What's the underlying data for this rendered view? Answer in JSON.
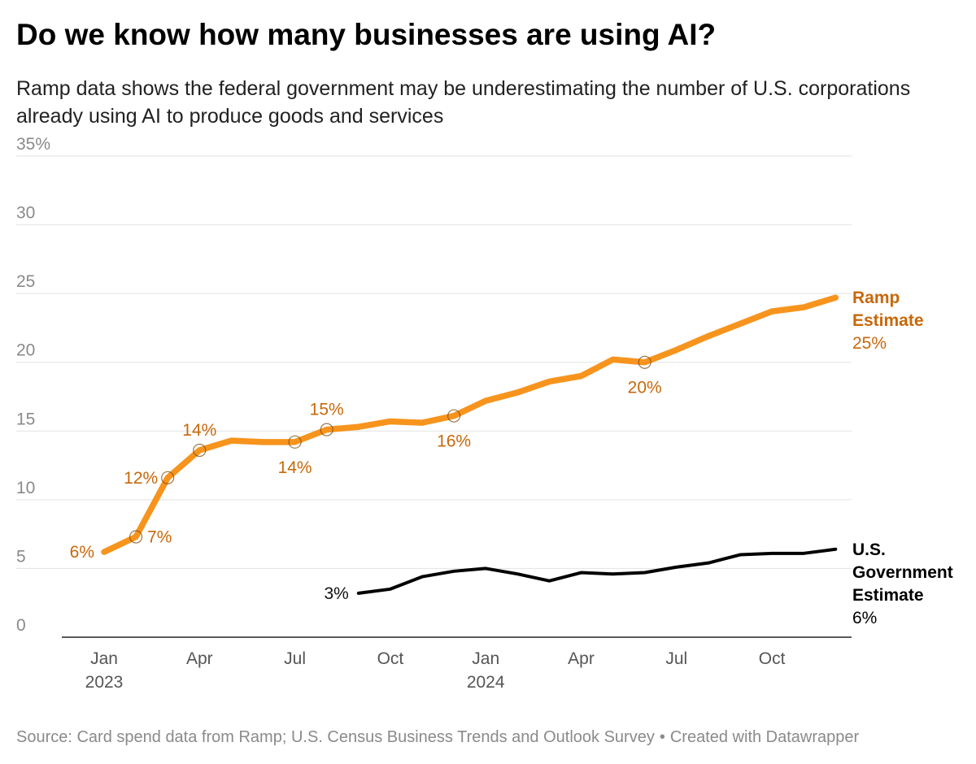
{
  "title": "Do we know how many businesses are using AI?",
  "subtitle": "Ramp data shows the federal government may be underestimating the number of U.S. corporations already using AI to produce goods and services",
  "colors": {
    "ramp": "#f7941d",
    "ramp_label": "#c8680a",
    "government": "#000000",
    "grid": "#e2e2e2",
    "axis_text": "#8a8a8a"
  },
  "source": {
    "text": "Source: Card spend data from Ramp; U.S. Census Business Trends and Outlook Survey",
    "separator": "•",
    "credit": "Created with Datawrapper"
  },
  "chart_data": {
    "type": "line",
    "title": "Do we know how many businesses are using AI?",
    "ylabel": "",
    "xlabel": "",
    "ylim": [
      0,
      35
    ],
    "y_ticks": [
      {
        "value": 0,
        "label": "0"
      },
      {
        "value": 5,
        "label": "5"
      },
      {
        "value": 10,
        "label": "10"
      },
      {
        "value": 15,
        "label": "15"
      },
      {
        "value": 20,
        "label": "20"
      },
      {
        "value": 25,
        "label": "25"
      },
      {
        "value": 30,
        "label": "30"
      },
      {
        "value": 35,
        "label": "35%"
      }
    ],
    "x_ticks": [
      {
        "month_index": 0,
        "label": "Jan",
        "year": "2023"
      },
      {
        "month_index": 3,
        "label": "Apr",
        "year": ""
      },
      {
        "month_index": 6,
        "label": "Jul",
        "year": ""
      },
      {
        "month_index": 9,
        "label": "Oct",
        "year": ""
      },
      {
        "month_index": 12,
        "label": "Jan",
        "year": "2024"
      },
      {
        "month_index": 15,
        "label": "Apr",
        "year": ""
      },
      {
        "month_index": 18,
        "label": "Jul",
        "year": ""
      },
      {
        "month_index": 21,
        "label": "Oct",
        "year": ""
      }
    ],
    "series": [
      {
        "name": "Ramp Estimate",
        "label_lines": [
          "Ramp",
          "Estimate"
        ],
        "end_value_label": "25%",
        "month_index": [
          0,
          1,
          2,
          3,
          4,
          5,
          6,
          7,
          8,
          9,
          10,
          11,
          12,
          13,
          14,
          15,
          16,
          17,
          18,
          19,
          20,
          21,
          22,
          23
        ],
        "values": [
          6.2,
          7.3,
          11.6,
          13.6,
          14.3,
          14.2,
          14.2,
          15.1,
          15.3,
          15.7,
          15.6,
          16.1,
          17.2,
          17.8,
          18.6,
          19.0,
          20.2,
          20.0,
          20.9,
          21.9,
          22.8,
          23.7,
          24.0,
          24.7
        ],
        "annotations": [
          {
            "index": 0,
            "label": "6%",
            "marker": false,
            "position": "left"
          },
          {
            "index": 1,
            "label": "7%",
            "marker": true,
            "position": "right"
          },
          {
            "index": 2,
            "label": "12%",
            "marker": true,
            "position": "left"
          },
          {
            "index": 3,
            "label": "14%",
            "marker": true,
            "position": "above"
          },
          {
            "index": 6,
            "label": "14%",
            "marker": true,
            "position": "below"
          },
          {
            "index": 7,
            "label": "15%",
            "marker": true,
            "position": "above"
          },
          {
            "index": 11,
            "label": "16%",
            "marker": true,
            "position": "below"
          },
          {
            "index": 17,
            "label": "20%",
            "marker": true,
            "position": "below"
          }
        ]
      },
      {
        "name": "U.S. Government Estimate",
        "label_lines": [
          "U.S.",
          "Government",
          "Estimate"
        ],
        "end_value_label": "6%",
        "month_index": [
          8,
          9,
          10,
          11,
          12,
          13,
          14,
          15,
          16,
          17,
          18,
          19,
          20,
          21,
          22,
          23
        ],
        "values": [
          3.2,
          3.5,
          4.4,
          4.8,
          5.0,
          4.6,
          4.1,
          4.7,
          4.6,
          4.7,
          5.1,
          5.4,
          6.0,
          6.1,
          6.1,
          6.4
        ],
        "annotations": [
          {
            "index": 0,
            "label": "3%",
            "marker": false,
            "position": "left"
          }
        ]
      }
    ]
  }
}
